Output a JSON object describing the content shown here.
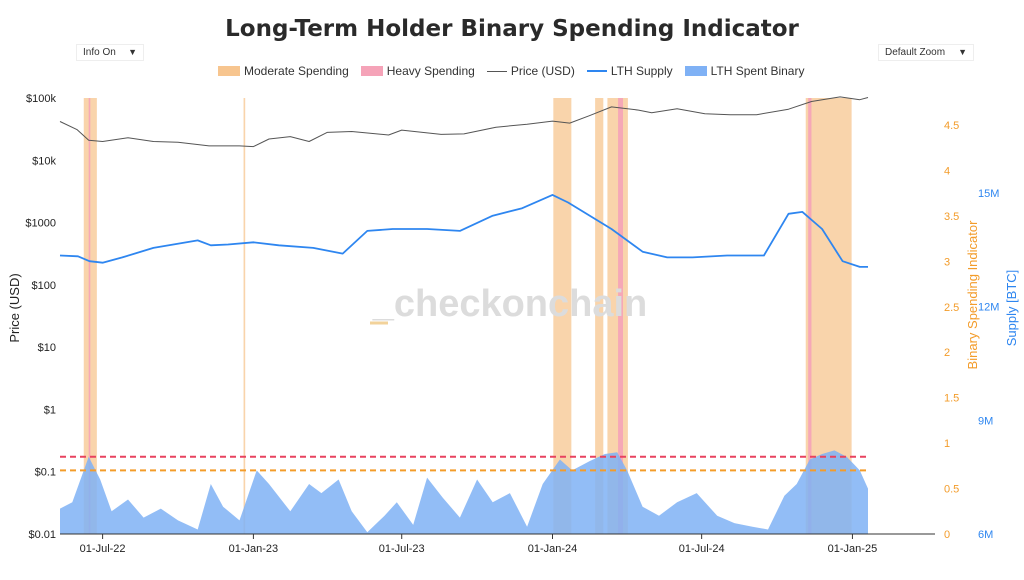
{
  "title": "Long-Term Holder Binary Spending Indicator",
  "controls": {
    "info_label": "Info On",
    "zoom_label": "Default Zoom",
    "dropdown_icon": "chevron-down-icon"
  },
  "watermark": "_checkonchain",
  "colors": {
    "moderate": "#f7c58f",
    "heavy": "#f5a3b8",
    "price": "#555555",
    "supply": "#2e86f0",
    "binary": "#7fb1f5",
    "orange": "#f39c2a",
    "red": "#e8425f",
    "blue_axis": "#2e86f0"
  },
  "chart_data": {
    "type": "area",
    "title": "Long-Term Holder Binary Spending Indicator",
    "ylabel_left": "Price (USD)",
    "ylabel_right_1": "Binary Spending Indicator",
    "ylabel_right_2": "Supply [BTC]",
    "xlabel": "",
    "left_axis": {
      "scale": "log",
      "ticks": [
        "$0.01",
        "$0.1",
        "$1",
        "$10",
        "$100",
        "$1000",
        "$10k",
        "$100k"
      ],
      "range": [
        0.01,
        100000
      ]
    },
    "right_axis_1": {
      "ticks": [
        "0",
        "0.5",
        "1",
        "1.5",
        "2",
        "2.5",
        "3",
        "3.5",
        "4",
        "4.5"
      ],
      "range": [
        0,
        4.5
      ]
    },
    "right_axis_2": {
      "ticks": [
        "6M",
        "9M",
        "12M",
        "15M"
      ],
      "range": [
        6,
        15
      ]
    },
    "x_ticks": [
      "01-Jul-22",
      "01-Jan-23",
      "01-Jul-23",
      "01-Jan-24",
      "01-Jul-24",
      "01-Jan-25"
    ],
    "x_range": [
      "2022-05-10",
      "2025-01-20"
    ],
    "thresholds": [
      {
        "name": "heavy",
        "value": 0.85,
        "style": "dashed"
      },
      {
        "name": "moderate",
        "value": 0.7,
        "style": "dashed"
      }
    ],
    "series": [
      {
        "name": "Moderate Spending",
        "kind": "band"
      },
      {
        "name": "Heavy Spending",
        "kind": "band"
      },
      {
        "name": "Price (USD)",
        "kind": "line",
        "points": [
          [
            "2022-05-10",
            42000
          ],
          [
            "2022-05-31",
            31000
          ],
          [
            "2022-06-14",
            21000
          ],
          [
            "2022-07-01",
            20000
          ],
          [
            "2022-08-01",
            23000
          ],
          [
            "2022-09-01",
            20000
          ],
          [
            "2022-10-01",
            19500
          ],
          [
            "2022-11-08",
            17000
          ],
          [
            "2022-12-15",
            17000
          ],
          [
            "2023-01-01",
            16600
          ],
          [
            "2023-01-20",
            22000
          ],
          [
            "2023-02-15",
            24000
          ],
          [
            "2023-03-10",
            20000
          ],
          [
            "2023-04-01",
            28000
          ],
          [
            "2023-05-01",
            29000
          ],
          [
            "2023-06-15",
            25500
          ],
          [
            "2023-07-01",
            30500
          ],
          [
            "2023-08-18",
            26000
          ],
          [
            "2023-09-15",
            26500
          ],
          [
            "2023-10-24",
            34000
          ],
          [
            "2023-12-01",
            38000
          ],
          [
            "2024-01-01",
            42500
          ],
          [
            "2024-01-22",
            39500
          ],
          [
            "2024-02-15",
            52000
          ],
          [
            "2024-03-13",
            72000
          ],
          [
            "2024-04-15",
            64000
          ],
          [
            "2024-05-01",
            58000
          ],
          [
            "2024-06-01",
            67000
          ],
          [
            "2024-07-05",
            56000
          ],
          [
            "2024-08-05",
            54000
          ],
          [
            "2024-09-06",
            54000
          ],
          [
            "2024-10-15",
            66000
          ],
          [
            "2024-11-12",
            88000
          ],
          [
            "2024-12-17",
            104000
          ],
          [
            "2025-01-10",
            94000
          ],
          [
            "2025-01-20",
            102000
          ]
        ]
      },
      {
        "name": "LTH Supply",
        "kind": "line",
        "points": [
          [
            "2022-05-10",
            13.35
          ],
          [
            "2022-06-01",
            13.33
          ],
          [
            "2022-06-15",
            13.2
          ],
          [
            "2022-07-01",
            13.16
          ],
          [
            "2022-07-25",
            13.3
          ],
          [
            "2022-09-01",
            13.55
          ],
          [
            "2022-10-25",
            13.75
          ],
          [
            "2022-11-10",
            13.62
          ],
          [
            "2022-12-01",
            13.64
          ],
          [
            "2023-01-01",
            13.7
          ],
          [
            "2023-02-01",
            13.62
          ],
          [
            "2023-03-15",
            13.55
          ],
          [
            "2023-04-20",
            13.4
          ],
          [
            "2023-05-20",
            14.0
          ],
          [
            "2023-06-20",
            14.05
          ],
          [
            "2023-08-01",
            14.05
          ],
          [
            "2023-09-10",
            14.0
          ],
          [
            "2023-10-20",
            14.4
          ],
          [
            "2023-11-25",
            14.6
          ],
          [
            "2024-01-01",
            14.95
          ],
          [
            "2024-01-20",
            14.75
          ],
          [
            "2024-03-13",
            14.05
          ],
          [
            "2024-04-20",
            13.45
          ],
          [
            "2024-05-20",
            13.3
          ],
          [
            "2024-06-20",
            13.3
          ],
          [
            "2024-08-01",
            13.35
          ],
          [
            "2024-09-15",
            13.35
          ],
          [
            "2024-10-15",
            14.45
          ],
          [
            "2024-11-01",
            14.5
          ],
          [
            "2024-11-25",
            14.05
          ],
          [
            "2024-12-20",
            13.2
          ],
          [
            "2025-01-10",
            13.05
          ],
          [
            "2025-01-20",
            13.05
          ]
        ]
      },
      {
        "name": "LTH Spent Binary",
        "kind": "area",
        "points": [
          [
            "2022-05-10",
            0.28
          ],
          [
            "2022-05-25",
            0.35
          ],
          [
            "2022-06-14",
            0.85
          ],
          [
            "2022-06-28",
            0.6
          ],
          [
            "2022-07-12",
            0.25
          ],
          [
            "2022-08-01",
            0.38
          ],
          [
            "2022-08-20",
            0.18
          ],
          [
            "2022-09-10",
            0.28
          ],
          [
            "2022-10-01",
            0.15
          ],
          [
            "2022-10-25",
            0.05
          ],
          [
            "2022-11-10",
            0.55
          ],
          [
            "2022-11-25",
            0.3
          ],
          [
            "2022-12-15",
            0.15
          ],
          [
            "2023-01-05",
            0.7
          ],
          [
            "2023-01-20",
            0.55
          ],
          [
            "2023-02-15",
            0.25
          ],
          [
            "2023-03-10",
            0.55
          ],
          [
            "2023-03-25",
            0.45
          ],
          [
            "2023-04-15",
            0.6
          ],
          [
            "2023-05-01",
            0.25
          ],
          [
            "2023-05-20",
            0.02
          ],
          [
            "2023-06-10",
            0.2
          ],
          [
            "2023-06-25",
            0.35
          ],
          [
            "2023-07-15",
            0.1
          ],
          [
            "2023-08-01",
            0.62
          ],
          [
            "2023-08-20",
            0.4
          ],
          [
            "2023-09-10",
            0.18
          ],
          [
            "2023-10-01",
            0.6
          ],
          [
            "2023-10-20",
            0.35
          ],
          [
            "2023-11-10",
            0.45
          ],
          [
            "2023-12-01",
            0.08
          ],
          [
            "2023-12-20",
            0.55
          ],
          [
            "2024-01-10",
            0.82
          ],
          [
            "2024-01-25",
            0.7
          ],
          [
            "2024-02-15",
            0.8
          ],
          [
            "2024-03-05",
            0.88
          ],
          [
            "2024-03-20",
            0.9
          ],
          [
            "2024-04-01",
            0.7
          ],
          [
            "2024-04-20",
            0.3
          ],
          [
            "2024-05-10",
            0.2
          ],
          [
            "2024-06-01",
            0.35
          ],
          [
            "2024-06-25",
            0.45
          ],
          [
            "2024-07-20",
            0.2
          ],
          [
            "2024-08-10",
            0.12
          ],
          [
            "2024-09-01",
            0.08
          ],
          [
            "2024-09-20",
            0.05
          ],
          [
            "2024-10-10",
            0.42
          ],
          [
            "2024-10-25",
            0.55
          ],
          [
            "2024-11-10",
            0.82
          ],
          [
            "2024-11-25",
            0.88
          ],
          [
            "2024-12-10",
            0.92
          ],
          [
            "2024-12-25",
            0.85
          ],
          [
            "2025-01-10",
            0.7
          ],
          [
            "2025-01-20",
            0.5
          ]
        ]
      }
    ],
    "moderate_bands": [
      [
        "2022-06-08",
        "2022-06-24"
      ],
      [
        "2022-12-20",
        "2022-12-22"
      ],
      [
        "2024-01-02",
        "2024-01-24"
      ],
      [
        "2024-02-22",
        "2024-03-03"
      ],
      [
        "2024-03-08",
        "2024-04-02"
      ],
      [
        "2024-11-05",
        "2024-12-31"
      ]
    ],
    "heavy_bands": [
      [
        "2022-06-14",
        "2022-06-16"
      ],
      [
        "2024-03-21",
        "2024-03-27"
      ],
      [
        "2024-11-08",
        "2024-11-12"
      ]
    ]
  }
}
